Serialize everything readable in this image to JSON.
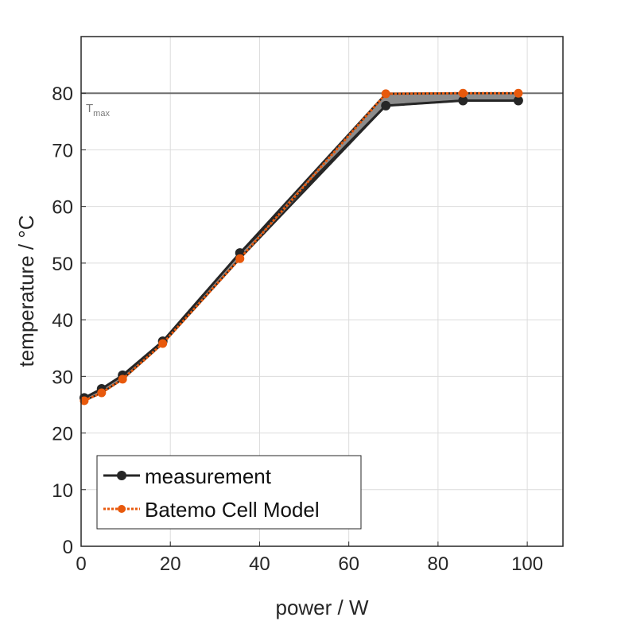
{
  "chart_data": {
    "type": "line",
    "xlabel": "power / W",
    "ylabel": "temperature / °C",
    "xlim": [
      0,
      108
    ],
    "ylim": [
      0,
      90
    ],
    "xticks": [
      0,
      20,
      40,
      60,
      80,
      100
    ],
    "yticks": [
      0,
      10,
      20,
      30,
      40,
      50,
      60,
      70,
      80
    ],
    "grid": true,
    "legend_position": "bottom-left",
    "reference_line": {
      "y": 80,
      "label": "T",
      "label_sub": "max"
    },
    "series": [
      {
        "name": "measurement",
        "color": "#262626",
        "style": "solid",
        "x": [
          0.7,
          4.6,
          9.3,
          18.3,
          35.6,
          68.3,
          85.6,
          98.0
        ],
        "y": [
          26.2,
          27.8,
          30.2,
          36.2,
          51.8,
          77.8,
          78.7,
          78.7
        ]
      },
      {
        "name": "Batemo Cell Model",
        "color": "#e8590c",
        "style": "dotted",
        "x": [
          0.7,
          4.6,
          9.3,
          18.3,
          35.6,
          68.3,
          85.6,
          98.0
        ],
        "y": [
          25.7,
          27.1,
          29.5,
          35.8,
          50.8,
          79.9,
          80.0,
          80.0
        ]
      }
    ]
  }
}
